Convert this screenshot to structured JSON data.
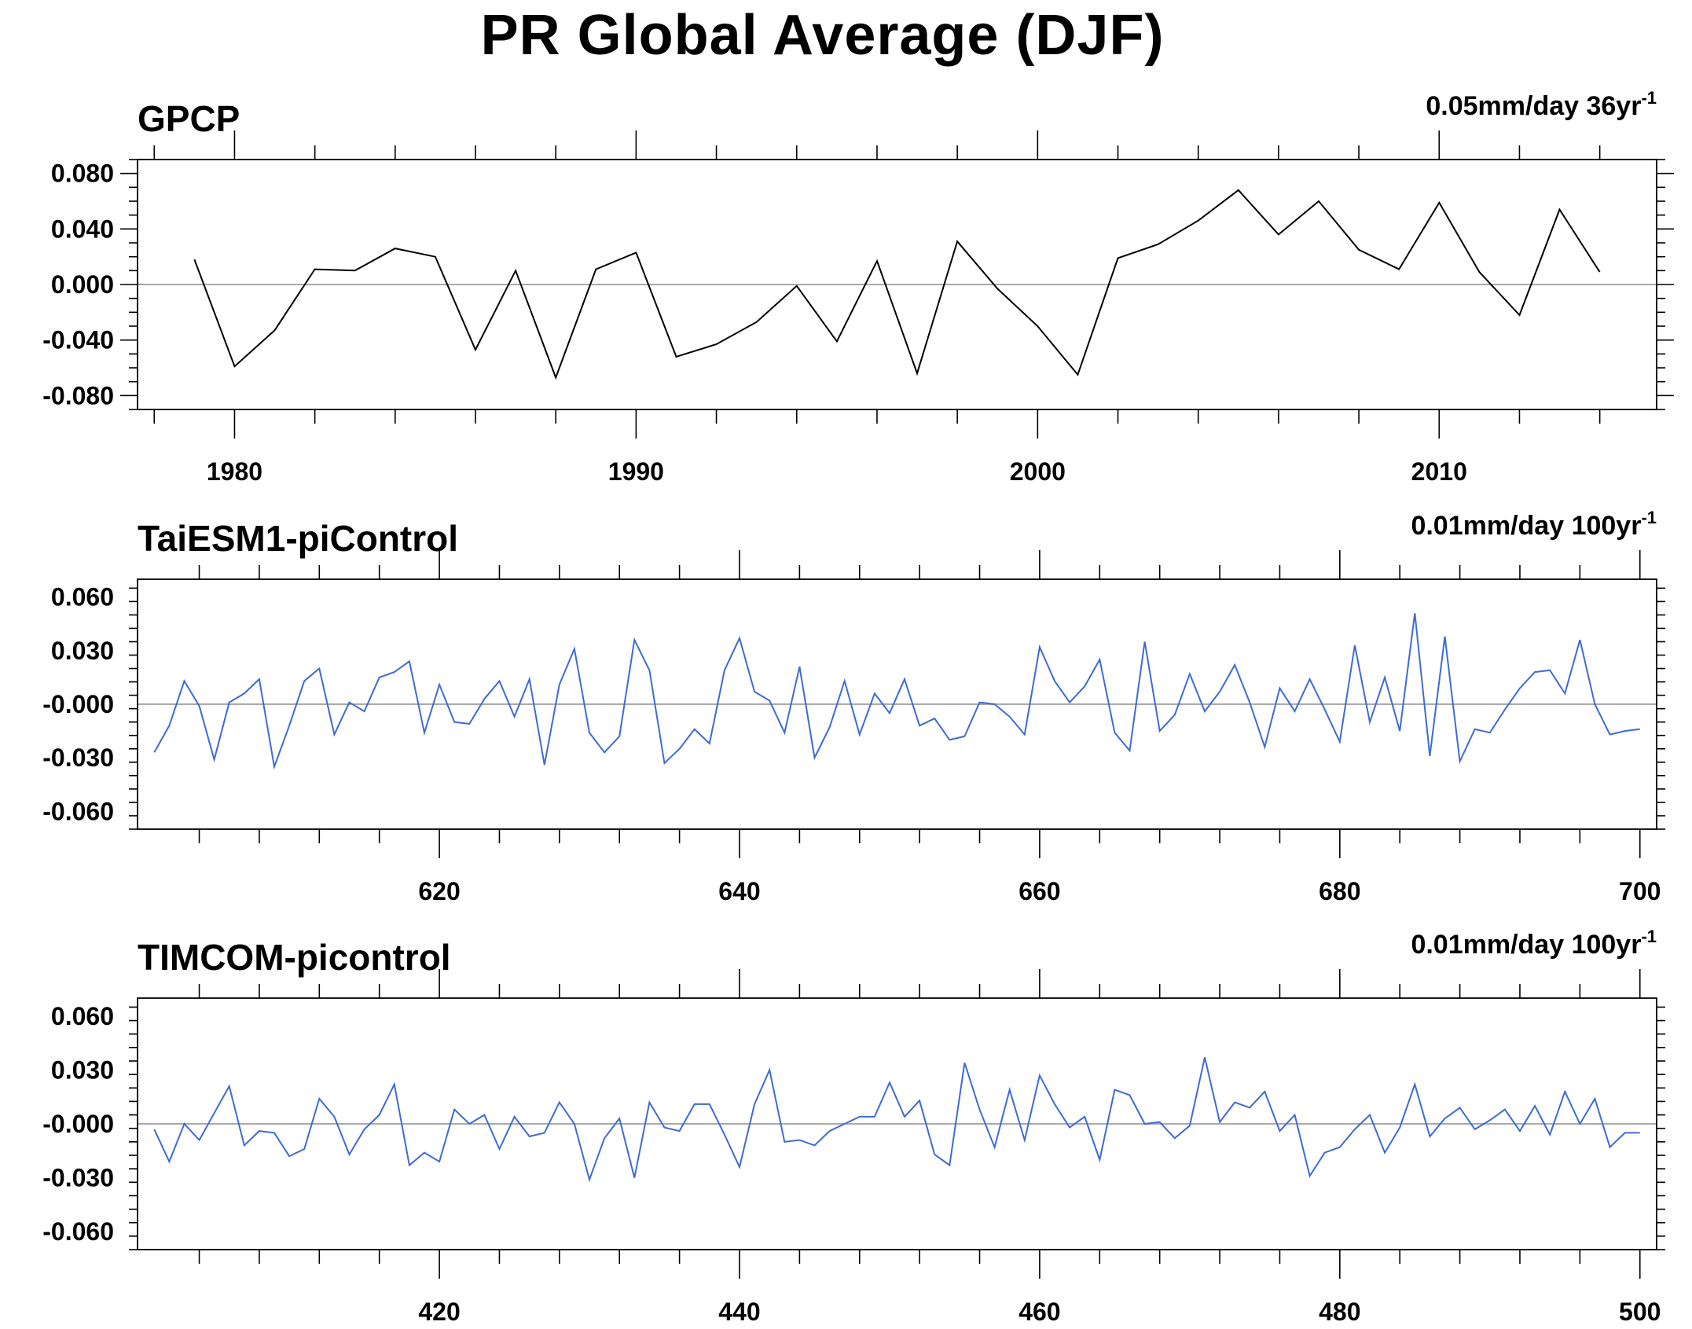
{
  "title": "PR Global Average (DJF)",
  "chart_data": [
    {
      "type": "line",
      "title": "GPCP",
      "annotation": "0.05mm/day 36yr",
      "annotation_sup": "-1",
      "x_range": [
        1978,
        2015
      ],
      "ylim": [
        -0.09,
        0.09
      ],
      "yticks": [
        -0.08,
        -0.04,
        0.0,
        0.04,
        0.08
      ],
      "ytick_labels": [
        "-0.080",
        "-0.040",
        "0.000",
        "0.040",
        "0.080"
      ],
      "xticks": [
        1980,
        1990,
        2000,
        2010
      ],
      "xtick_labels": [
        "1980",
        "1990",
        "2000",
        "2010"
      ],
      "zero_line": true,
      "color": "#000000",
      "series": [
        {
          "x": [
            1979,
            1980,
            1981,
            1982,
            1983,
            1984,
            1985,
            1986,
            1987,
            1988,
            1989,
            1990,
            1991,
            1992,
            1993,
            1994,
            1995,
            1996,
            1997,
            1998,
            1999,
            2000,
            2001,
            2002,
            2003,
            2004,
            2005,
            2006,
            2007,
            2008,
            2009,
            2010,
            2011,
            2012,
            2013,
            2014
          ],
          "values": [
            0.018,
            -0.059,
            -0.033,
            0.011,
            0.01,
            0.026,
            0.02,
            -0.047,
            0.01,
            -0.067,
            0.011,
            0.023,
            -0.052,
            -0.043,
            -0.027,
            -0.001,
            -0.041,
            0.017,
            -0.064,
            0.031,
            -0.003,
            -0.03,
            -0.065,
            0.019,
            0.029,
            0.046,
            0.068,
            0.036,
            0.06,
            0.025,
            0.011,
            0.059,
            0.009,
            -0.022,
            0.054,
            0.009
          ]
        }
      ]
    },
    {
      "type": "line",
      "title": "TaiESM1-piControl",
      "annotation": "0.01mm/day 100yr",
      "annotation_sup": "-1",
      "x_range": [
        601,
        700
      ],
      "ylim": [
        -0.07,
        0.07
      ],
      "yticks": [
        -0.06,
        -0.03,
        0.0,
        0.03,
        0.06
      ],
      "ytick_labels": [
        "-0.060",
        "-0.030",
        "-0.000",
        "0.030",
        "0.060"
      ],
      "xticks": [
        620,
        640,
        660,
        680,
        700
      ],
      "xtick_labels": [
        "620",
        "640",
        "660",
        "680",
        "700"
      ],
      "zero_line": true,
      "color": "#3d6bd6",
      "series": [
        {
          "x": [
            601,
            602,
            603,
            604,
            605,
            606,
            607,
            608,
            609,
            610,
            611,
            612,
            613,
            614,
            615,
            616,
            617,
            618,
            619,
            620,
            621,
            622,
            623,
            624,
            625,
            626,
            627,
            628,
            629,
            630,
            631,
            632,
            633,
            634,
            635,
            636,
            637,
            638,
            639,
            640,
            641,
            642,
            643,
            644,
            645,
            646,
            647,
            648,
            649,
            650,
            651,
            652,
            653,
            654,
            655,
            656,
            657,
            658,
            659,
            660,
            661,
            662,
            663,
            664,
            665,
            666,
            667,
            668,
            669,
            670,
            671,
            672,
            673,
            674,
            675,
            676,
            677,
            678,
            679,
            680,
            681,
            682,
            683,
            684,
            685,
            686,
            687,
            688,
            689,
            690,
            691,
            692,
            693,
            694,
            695,
            696,
            697,
            698,
            699,
            700
          ],
          "values": [
            -0.027,
            -0.012,
            0.013,
            -0.001,
            -0.031,
            0.001,
            0.006,
            0.014,
            -0.035,
            -0.012,
            0.013,
            0.02,
            -0.017,
            0.001,
            -0.004,
            0.015,
            0.018,
            0.024,
            -0.016,
            0.011,
            -0.01,
            -0.011,
            0.003,
            0.013,
            -0.007,
            0.014,
            -0.034,
            0.011,
            0.031,
            -0.016,
            -0.027,
            -0.018,
            0.036,
            0.019,
            -0.033,
            -0.025,
            -0.014,
            -0.022,
            0.019,
            0.037,
            0.007,
            0.002,
            -0.016,
            0.021,
            -0.03,
            -0.013,
            0.013,
            -0.017,
            0.006,
            -0.005,
            0.014,
            -0.012,
            -0.008,
            -0.02,
            -0.018,
            0.001,
            0.0,
            -0.007,
            -0.017,
            0.032,
            0.013,
            0.001,
            0.01,
            0.025,
            -0.016,
            -0.026,
            0.035,
            -0.015,
            -0.006,
            0.017,
            -0.004,
            0.007,
            0.022,
            0.001,
            -0.024,
            0.009,
            -0.004,
            0.014,
            -0.003,
            -0.021,
            0.033,
            -0.01,
            0.015,
            -0.015,
            0.051,
            -0.029,
            0.038,
            -0.032,
            -0.014,
            -0.016,
            -0.003,
            0.009,
            0.018,
            0.019,
            0.006,
            0.036,
            0.0,
            -0.017,
            -0.015,
            -0.014
          ]
        }
      ]
    },
    {
      "type": "line",
      "title": "TIMCOM-picontrol",
      "annotation": "0.01mm/day 100yr",
      "annotation_sup": "-1",
      "x_range": [
        401,
        500
      ],
      "ylim": [
        -0.07,
        0.07
      ],
      "yticks": [
        -0.06,
        -0.03,
        0.0,
        0.03,
        0.06
      ],
      "ytick_labels": [
        "-0.060",
        "-0.030",
        "-0.000",
        "0.030",
        "0.060"
      ],
      "xticks": [
        420,
        440,
        460,
        480,
        500
      ],
      "xtick_labels": [
        "420",
        "440",
        "460",
        "480",
        "500"
      ],
      "zero_line": true,
      "color": "#3d6bd6",
      "series": [
        {
          "x": [
            401,
            402,
            403,
            404,
            405,
            406,
            407,
            408,
            409,
            410,
            411,
            412,
            413,
            414,
            415,
            416,
            417,
            418,
            419,
            420,
            421,
            422,
            423,
            424,
            425,
            426,
            427,
            428,
            429,
            430,
            431,
            432,
            433,
            434,
            435,
            436,
            437,
            438,
            439,
            440,
            441,
            442,
            443,
            444,
            445,
            446,
            447,
            448,
            449,
            450,
            451,
            452,
            453,
            454,
            455,
            456,
            457,
            458,
            459,
            460,
            461,
            462,
            463,
            464,
            465,
            466,
            467,
            468,
            469,
            470,
            471,
            472,
            473,
            474,
            475,
            476,
            477,
            478,
            479,
            480,
            481,
            482,
            483,
            484,
            485,
            486,
            487,
            488,
            489,
            490,
            491,
            492,
            493,
            494,
            495,
            496,
            497,
            498,
            499,
            500
          ],
          "values": [
            -0.003,
            -0.021,
            0.0,
            -0.009,
            0.006,
            0.021,
            -0.012,
            -0.004,
            -0.005,
            -0.018,
            -0.014,
            0.014,
            0.004,
            -0.017,
            -0.003,
            0.005,
            0.022,
            -0.023,
            -0.016,
            -0.021,
            0.008,
            0.0,
            0.005,
            -0.014,
            0.004,
            -0.007,
            -0.005,
            0.012,
            0.0,
            -0.031,
            -0.008,
            0.003,
            -0.03,
            0.012,
            -0.002,
            -0.004,
            0.011,
            0.011,
            -0.006,
            -0.024,
            0.011,
            0.03,
            -0.01,
            -0.009,
            -0.012,
            -0.004,
            0.0,
            0.004,
            0.004,
            0.023,
            0.004,
            0.013,
            -0.017,
            -0.023,
            0.034,
            0.008,
            -0.013,
            0.019,
            -0.009,
            0.027,
            0.011,
            -0.002,
            0.004,
            -0.02,
            0.019,
            0.016,
            0.0,
            0.001,
            -0.008,
            -0.001,
            0.037,
            0.001,
            0.012,
            0.009,
            0.018,
            -0.004,
            0.005,
            -0.029,
            -0.016,
            -0.013,
            -0.003,
            0.005,
            -0.016,
            -0.002,
            0.022,
            -0.007,
            0.003,
            0.009,
            -0.003,
            0.002,
            0.008,
            -0.004,
            0.01,
            -0.006,
            0.018,
            0.0,
            0.014,
            -0.013,
            -0.005,
            -0.005
          ]
        }
      ]
    }
  ]
}
